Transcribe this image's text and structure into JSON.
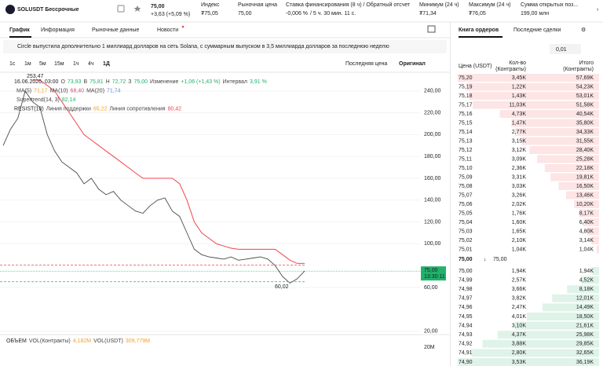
{
  "header": {
    "symbol": "SOLUSDT Бессрочные",
    "price": "75,00",
    "change": "+3,63 (+5,09 %)",
    "stats": [
      {
        "label": "Индекс",
        "value": "₮75,05"
      },
      {
        "label": "Рыночная цена",
        "value": "75,00"
      },
      {
        "label": "Ставка финансирования (8 ч) / Обратный отсчет",
        "value": "-0,006 %",
        "extra": "/ 5 ч. 30 мин. 11 с."
      },
      {
        "label": "Минимум (24 ч)",
        "value": "₮71,34"
      },
      {
        "label": "Максимум (24 ч)",
        "value": "₮76,05"
      },
      {
        "label": "Сумма открытых поз...",
        "value": "199,00 млн"
      }
    ]
  },
  "tabs": [
    "График",
    "Информация",
    "Рыночные данные",
    "Новости"
  ],
  "banner": "Circle выпустила дополнительно 1 миллиард долларов на сеть Solana, с суммарным выпуском в 3,5 миллиарда долларов за последнюю неделю",
  "toolbar": {
    "intervals": [
      "1с",
      "1м",
      "5м",
      "15м",
      "1ч",
      "4ч",
      "1Д"
    ],
    "price_type": "Последняя цена",
    "view": "Оригинал"
  },
  "chart_data": {
    "type": "line",
    "legend": [
      {
        "text": "16.06.2026, 03:00",
        "pairs": [
          {
            "label": "О",
            "value": "73,93",
            "color": "#20b26c"
          },
          {
            "label": "В",
            "value": "75,81",
            "color": "#20b26c"
          },
          {
            "label": "Н",
            "value": "72,72",
            "color": "#20b26c"
          },
          {
            "label": "З",
            "value": "75,00",
            "color": "#20b26c"
          },
          {
            "label": "Изменение",
            "value": "+1,06 (+1,43 %)",
            "color": "#20b26c"
          },
          {
            "label": "Интервал",
            "value": "3,91 %",
            "color": "#20b26c"
          }
        ]
      },
      {
        "pairs": [
          {
            "label": "MA(5)",
            "value": "71,17",
            "color": "#f0a030"
          },
          {
            "label": "MA(10)",
            "value": "68,40",
            "color": "#d0507a"
          },
          {
            "label": "MA(20)",
            "value": "71,74",
            "color": "#5a8ee0"
          }
        ]
      },
      {
        "pairs": [
          {
            "label": "Supertrend(14, 3)",
            "value": "82,14",
            "color": "#20b26c"
          }
        ]
      },
      {
        "text": "RESIST(10)",
        "pairs": [
          {
            "label": "Линия поддержки",
            "value": "65,22",
            "color": "#f0a030"
          },
          {
            "label": "Линия сопротивления",
            "value": "80,42",
            "color": "#ef454a"
          }
        ]
      }
    ],
    "ylim": [
      20,
      244
    ],
    "yticks": [
      {
        "value": 240,
        "label": "240,00"
      },
      {
        "value": 220,
        "label": "220,00"
      },
      {
        "value": 200,
        "label": "200,00"
      },
      {
        "value": 180,
        "label": "180,00"
      },
      {
        "value": 160,
        "label": "160,00"
      },
      {
        "value": 140,
        "label": "140,00"
      },
      {
        "value": 120,
        "label": "120,00"
      },
      {
        "value": 100,
        "label": "100,00"
      },
      {
        "value": 60,
        "label": "60,00"
      },
      {
        "value": 20,
        "label": "20,00"
      }
    ],
    "series": [
      {
        "color": "#4a4a4a",
        "values": [
          190,
          205,
          215,
          240,
          230,
          225,
          200,
          185,
          175,
          170,
          165,
          155,
          160,
          150,
          145,
          148,
          140,
          135,
          130,
          128,
          135,
          140,
          142,
          130,
          125,
          110,
          95,
          90,
          88,
          87,
          86,
          88,
          85,
          86,
          87,
          88,
          86,
          80,
          70,
          64,
          68,
          75
        ]
      },
      {
        "color": "#ef454a",
        "values": [
          null,
          null,
          null,
          null,
          250,
          250,
          245,
          240,
          230,
          220,
          210,
          200,
          195,
          190,
          185,
          180,
          175,
          170,
          165,
          160,
          160,
          160,
          160,
          160,
          155,
          140,
          120,
          110,
          105,
          100,
          98,
          96,
          95,
          95,
          95,
          95,
          95,
          95,
          90,
          85,
          82,
          82
        ]
      }
    ],
    "support": {
      "value": 65.22,
      "color": "#20b26c"
    },
    "resistance": {
      "value": 80.42,
      "color": "#ef454a"
    },
    "last": {
      "value": 75,
      "label": "75,00",
      "time": "13:30:11"
    },
    "max_label": "253,47",
    "min_label": "60,02",
    "volume": {
      "text": "ОБЪЕМ",
      "pairs": [
        {
          "label": "VOL(Контракты)",
          "value": "4,182M",
          "color": "#f0a030"
        },
        {
          "label": "VOL(USDT)",
          "value": "309,779M",
          "color": "#f0a030"
        }
      ],
      "axis": "20M"
    }
  },
  "orderbook": {
    "tabs": [
      "Книга ордеров",
      "Последние сделки"
    ],
    "step": "0,01",
    "columns": [
      [
        "Цена (USDT)"
      ],
      [
        "Кол-во",
        "(Контракты)"
      ],
      [
        "Итого",
        "(Контракты)"
      ]
    ],
    "asks": [
      [
        "75,20",
        "3,45K",
        "57,69K"
      ],
      [
        "75,19",
        "1,22K",
        "54,23K"
      ],
      [
        "75,18",
        "1,43K",
        "53,01K"
      ],
      [
        "75,17",
        "11,03K",
        "51,58K"
      ],
      [
        "75,16",
        "4,73K",
        "40,54K"
      ],
      [
        "75,15",
        "1,47K",
        "35,80K"
      ],
      [
        "75,14",
        "2,77K",
        "34,33K"
      ],
      [
        "75,13",
        "3,15K",
        "31,55K"
      ],
      [
        "75,12",
        "3,12K",
        "28,40K"
      ],
      [
        "75,11",
        "3,09K",
        "25,28K"
      ],
      [
        "75,10",
        "2,36K",
        "22,18K"
      ],
      [
        "75,09",
        "3,31K",
        "19,81K"
      ],
      [
        "75,08",
        "3,03K",
        "16,50K"
      ],
      [
        "75,07",
        "3,26K",
        "13,46K"
      ],
      [
        "75,06",
        "2,02K",
        "10,20K"
      ],
      [
        "75,05",
        "1,76K",
        "8,17K"
      ],
      [
        "75,04",
        "1,60K",
        "6,40K"
      ],
      [
        "75,03",
        "1,65K",
        "4,80K"
      ],
      [
        "75,02",
        "2,10K",
        "3,14K"
      ],
      [
        "75,01",
        "1,04K",
        "1,04K"
      ]
    ],
    "mid": {
      "price": "75,00",
      "mark": "75,00"
    },
    "bids": [
      [
        "75,00",
        "1,94K",
        "1,94K"
      ],
      [
        "74,99",
        "2,57K",
        "4,52K"
      ],
      [
        "74,98",
        "3,66K",
        "8,18K"
      ],
      [
        "74,97",
        "3,82K",
        "12,01K"
      ],
      [
        "74,96",
        "2,47K",
        "14,49K"
      ],
      [
        "74,95",
        "4,01K",
        "18,50K"
      ],
      [
        "74,94",
        "3,10K",
        "21,61K"
      ],
      [
        "74,93",
        "4,37K",
        "25,98K"
      ],
      [
        "74,92",
        "3,88K",
        "29,85K"
      ],
      [
        "74,91",
        "2,80K",
        "32,65K"
      ],
      [
        "74,90",
        "3,53K",
        "36,19K"
      ]
    ]
  }
}
